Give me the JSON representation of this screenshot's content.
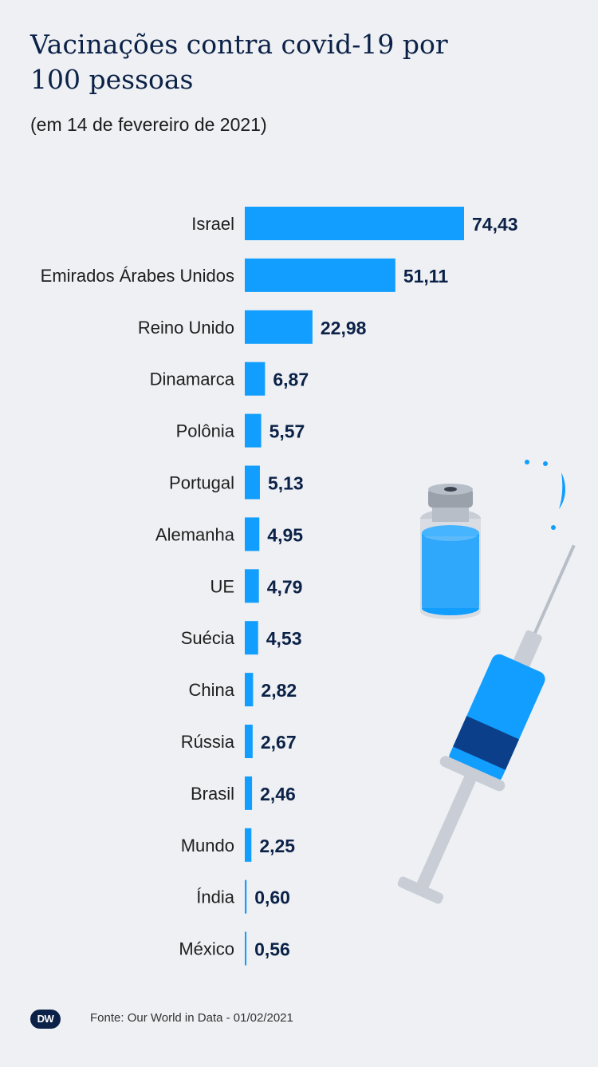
{
  "header": {
    "title": "Vacinações contra covid-19 por 100 pessoas",
    "subtitle": "(em 14 de fevereiro de 2021)"
  },
  "footer": {
    "logo_text": "DW",
    "source": "Fonte: Our World in Data  - 01/02/2021"
  },
  "colors": {
    "bar": "#129eff",
    "title": "#0b2147",
    "background": "#eef0f3"
  },
  "chart_data": {
    "type": "bar",
    "orientation": "horizontal",
    "title": "Vacinações contra covid-19 por 100 pessoas",
    "subtitle": "(em 14 de fevereiro de 2021)",
    "categories": [
      "Israel",
      "Emirados Árabes Unidos",
      "Reino Unido",
      "Dinamarca",
      "Polônia",
      "Portugal",
      "Alemanha",
      "UE",
      "Suécia",
      "China",
      "Rússia",
      "Brasil",
      "Mundo",
      "Índia",
      "México"
    ],
    "values": [
      74.43,
      51.11,
      22.98,
      6.87,
      5.57,
      5.13,
      4.95,
      4.79,
      4.53,
      2.82,
      2.67,
      2.46,
      2.25,
      0.6,
      0.56
    ],
    "value_labels": [
      "74,43",
      "51,11",
      "22,98",
      "6,87",
      "5,57",
      "5,13",
      "4,95",
      "4,79",
      "4,53",
      "2,82",
      "2,67",
      "2,46",
      "2,25",
      "0,60",
      "0,56"
    ],
    "xlim": [
      0,
      74.43
    ],
    "grid": false,
    "legend": "none"
  }
}
